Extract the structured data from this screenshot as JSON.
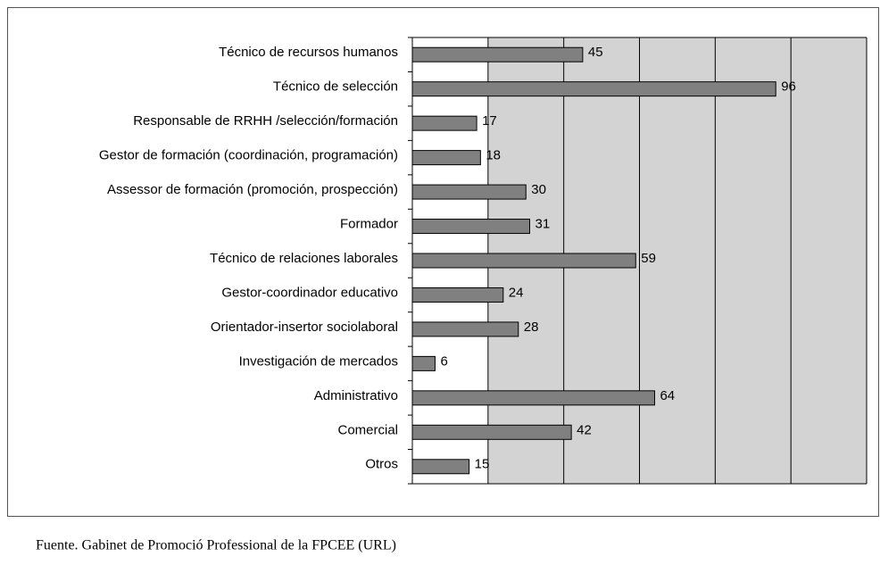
{
  "chart_data": {
    "type": "bar",
    "orientation": "horizontal",
    "categories": [
      "Técnico de recursos humanos",
      "Técnico de selección",
      "Responsable de RRHH /selección/formación",
      "Gestor de formación (coordinación, programación)",
      "Assessor de formación (promoción, prospección)",
      "Formador",
      "Técnico de relaciones laborales",
      "Gestor-coordinador educativo",
      "Orientador-insertor sociolaboral",
      "Investigación de mercados",
      "Administrativo",
      "Comercial",
      "Otros"
    ],
    "values": [
      45,
      96,
      17,
      18,
      30,
      31,
      59,
      24,
      28,
      6,
      64,
      42,
      15
    ],
    "color": "#808080",
    "xlim": [
      0,
      120
    ],
    "xticks": [
      0,
      20,
      40,
      60,
      80,
      100,
      120
    ],
    "grid": true
  },
  "footer": {
    "source": "Fuente. Gabinet de Promoció Professional de la FPCEE (URL)"
  }
}
